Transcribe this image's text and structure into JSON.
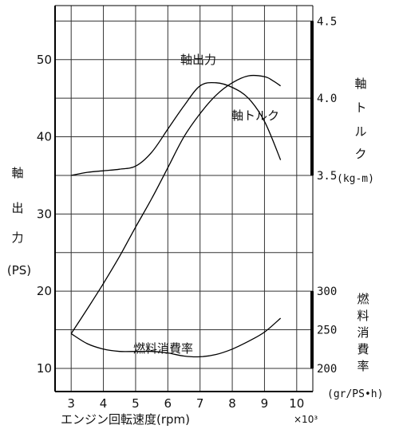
{
  "chart_data": {
    "type": "line",
    "x_axis": {
      "label": "エンジン回転速度(rpm)",
      "multiplier": "×10³",
      "ticks": [
        "3",
        "4",
        "5",
        "6",
        "7",
        "8",
        "9",
        "10"
      ],
      "range": [
        2.5,
        10.5
      ],
      "grid": true
    },
    "left_axis": {
      "label_chars": [
        "軸",
        "出",
        "力",
        "(PS)"
      ],
      "ticks": [
        "10",
        "20",
        "30",
        "40",
        "50"
      ],
      "range": [
        7,
        57
      ]
    },
    "torque_axis": {
      "label_chars": [
        "軸",
        "ト",
        "ル",
        "ク"
      ],
      "unit": "(kg-m)",
      "ticks": [
        "3.5",
        "4.0",
        "4.5"
      ],
      "range": [
        3.5,
        4.5
      ]
    },
    "fuel_axis": {
      "label_chars": [
        "燃",
        "料",
        "消",
        "費",
        "率"
      ],
      "unit": "(gr/PS•h)",
      "ticks": [
        "200",
        "250",
        "300"
      ],
      "range": [
        200,
        300
      ]
    },
    "series": [
      {
        "name": "軸出力",
        "axis": "left",
        "x": [
          3.0,
          3.5,
          4.0,
          4.5,
          5.0,
          5.5,
          6.0,
          6.5,
          7.0,
          7.5,
          8.0,
          8.5,
          9.0,
          9.25,
          9.5
        ],
        "y": [
          14.5,
          17.7,
          21.0,
          24.5,
          28.3,
          32.0,
          36.0,
          40.0,
          43.0,
          45.4,
          47.0,
          47.9,
          47.8,
          47.3,
          46.6
        ]
      },
      {
        "name": "軸トルク",
        "axis": "torque",
        "x": [
          3.0,
          3.5,
          4.0,
          4.5,
          5.0,
          5.5,
          6.0,
          6.5,
          7.0,
          7.5,
          8.0,
          8.5,
          9.0,
          9.5
        ],
        "y": [
          3.5,
          3.52,
          3.53,
          3.54,
          3.56,
          3.65,
          3.8,
          3.95,
          4.08,
          4.1,
          4.07,
          4.0,
          3.85,
          3.6
        ]
      },
      {
        "name": "燃料消費率",
        "axis": "fuel",
        "x": [
          3.0,
          3.5,
          4.0,
          4.5,
          5.0,
          5.5,
          6.0,
          6.5,
          7.0,
          7.5,
          8.0,
          8.5,
          9.0,
          9.5
        ],
        "y": [
          245,
          232,
          225,
          222,
          222,
          222,
          220,
          216,
          215,
          218,
          225,
          235,
          247,
          265
        ]
      }
    ]
  }
}
